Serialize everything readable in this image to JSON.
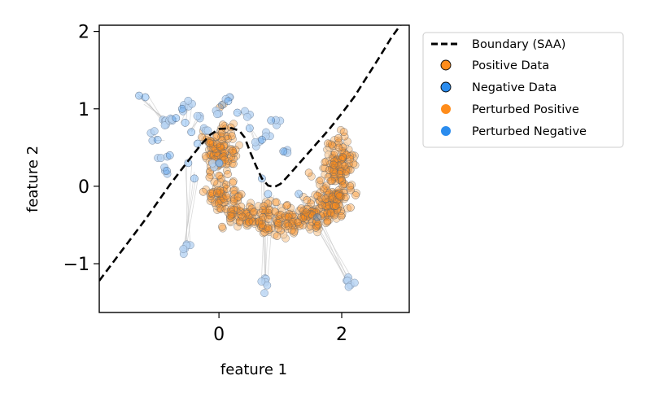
{
  "chart_data": {
    "type": "scatter",
    "xlabel": "feature 1",
    "ylabel": "feature 2",
    "xlim": [
      -1.95,
      3.1
    ],
    "ylim": [
      -1.63,
      2.08
    ],
    "x_ticks": [
      0,
      2
    ],
    "y_ticks": [
      -1,
      0,
      1,
      2
    ],
    "x_tick_labels": [
      "0",
      "2"
    ],
    "y_tick_labels": [
      "−1",
      "0",
      "1",
      "2"
    ],
    "grid": false,
    "legend_placement": "outside-right-top",
    "colors": {
      "positive": "#ff8c1a",
      "negative": "#2b8cee",
      "perturbed_positive_fill": "#f9d2a6",
      "perturbed_negative_fill": "#b6d3f3",
      "boundary": "#000000",
      "link_line": "#bbbbbb"
    },
    "legend": [
      {
        "label": "Boundary (SAA)",
        "kind": "dashed-line"
      },
      {
        "label": "Positive Data",
        "kind": "positive"
      },
      {
        "label": "Negative Data",
        "kind": "negative"
      },
      {
        "label": "Perturbed Positive",
        "kind": "perturbed-positive"
      },
      {
        "label": "Perturbed Negative",
        "kind": "perturbed-negative"
      }
    ],
    "boundary": {
      "x": [
        -1.95,
        -1.6,
        -1.2,
        -0.8,
        -0.5,
        -0.3,
        -0.15,
        0.0,
        0.2,
        0.33,
        0.42,
        0.5,
        0.6,
        0.7,
        0.8,
        0.9,
        1.0,
        1.1,
        1.2,
        1.4,
        1.6,
        1.8,
        2.0,
        2.2,
        2.4,
        2.6,
        2.8,
        3.0,
        3.1
      ],
      "y": [
        -1.22,
        -0.85,
        -0.43,
        0.02,
        0.33,
        0.53,
        0.66,
        0.74,
        0.75,
        0.72,
        0.63,
        0.46,
        0.27,
        0.1,
        0.01,
        -0.01,
        0.03,
        0.11,
        0.2,
        0.38,
        0.56,
        0.74,
        0.94,
        1.15,
        1.4,
        1.65,
        1.91,
        2.13,
        2.22
      ]
    },
    "positive_clusters": [
      {
        "arc_start_deg": 115,
        "arc_end_deg": 15,
        "center": [
          1.0,
          0.1
        ],
        "rx": 1.05,
        "ry": 0.55,
        "count": 230,
        "spread": 0.1
      }
    ],
    "positive_arms": [
      {
        "center": [
          0.0,
          0.45
        ],
        "sx": 0.12,
        "sy": 0.18,
        "count": 70
      },
      {
        "center": [
          1.95,
          0.25
        ],
        "sx": 0.12,
        "sy": 0.22,
        "count": 80
      }
    ],
    "negative_points": [
      {
        "x": -1.3,
        "y": 1.17,
        "px": -0.9,
        "py": 0.85
      },
      {
        "x": -1.2,
        "y": 1.15,
        "px": -0.85,
        "py": 0.82
      },
      {
        "x": -0.7,
        "y": 0.88,
        "px": -0.8,
        "py": 0.87
      },
      {
        "x": -0.6,
        "y": 1.0,
        "px": -0.55,
        "py": 1.03
      },
      {
        "x": -0.55,
        "y": 0.82,
        "px": -0.48,
        "py": 1.05
      },
      {
        "x": -0.45,
        "y": 0.7,
        "px": -0.35,
        "py": 0.9
      },
      {
        "x": -0.35,
        "y": 0.55,
        "px": -0.2,
        "py": 0.7
      },
      {
        "x": -0.8,
        "y": 0.4,
        "px": -0.9,
        "py": 0.4
      },
      {
        "x": -1.0,
        "y": 0.6,
        "px": -1.05,
        "py": 0.68
      },
      {
        "x": -0.85,
        "y": 0.2,
        "px": -0.9,
        "py": 0.2
      },
      {
        "x": -0.5,
        "y": 0.3,
        "px": -0.55,
        "py": -0.77
      },
      {
        "x": -0.4,
        "y": 0.1,
        "px": -0.55,
        "py": -0.8
      },
      {
        "x": 0.0,
        "y": 0.3,
        "px": -0.05,
        "py": 0.28
      },
      {
        "x": 0.05,
        "y": 1.05,
        "px": -0.05,
        "py": 0.98
      },
      {
        "x": 0.15,
        "y": 1.1,
        "px": 0.15,
        "py": 1.12
      },
      {
        "x": 0.3,
        "y": 0.95,
        "px": 0.45,
        "py": 0.92
      },
      {
        "x": 0.5,
        "y": 0.75,
        "px": 0.6,
        "py": 0.52
      },
      {
        "x": 0.7,
        "y": 0.6,
        "px": 0.8,
        "py": 0.7
      },
      {
        "x": 0.85,
        "y": 0.85,
        "px": 0.95,
        "py": 0.83
      },
      {
        "x": 1.05,
        "y": 0.45,
        "px": 1.1,
        "py": 0.4
      },
      {
        "x": 0.7,
        "y": 0.1,
        "px": 0.75,
        "py": -1.2
      },
      {
        "x": 0.8,
        "y": -0.1,
        "px": 0.75,
        "py": -1.3
      },
      {
        "x": 1.3,
        "y": -0.1,
        "px": 2.1,
        "py": -1.22
      },
      {
        "x": 1.6,
        "y": -0.4,
        "px": 2.15,
        "py": -1.23
      }
    ]
  }
}
